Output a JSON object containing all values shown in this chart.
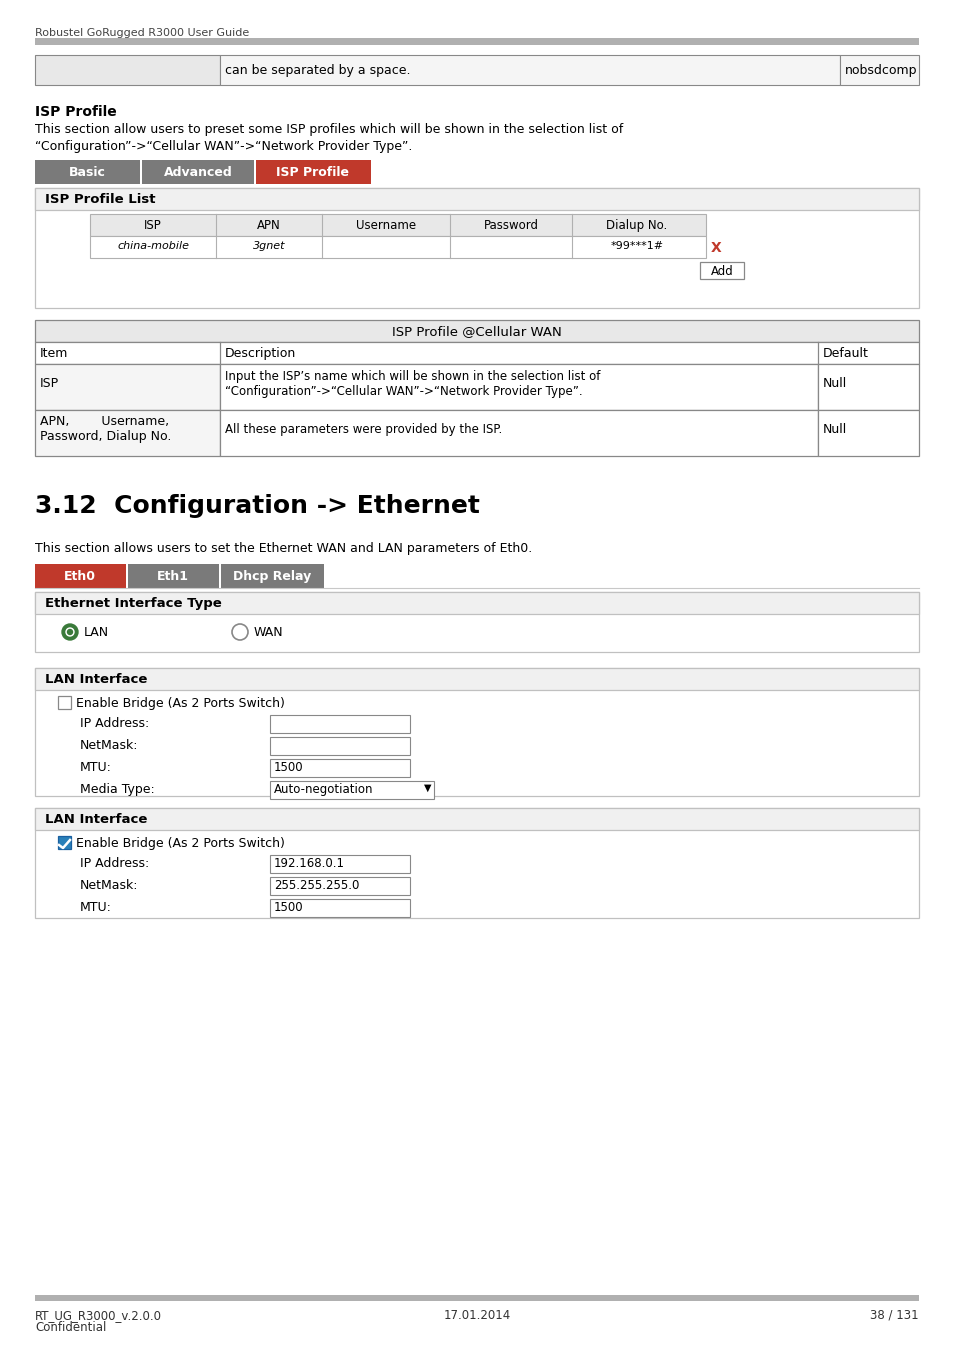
{
  "page_bg": "#ffffff",
  "header_text": "Robustel GoRugged R3000 User Guide",
  "top_table_col2": "can be separated by a space.",
  "top_table_col3": "nobsdcomp",
  "isp_profile_title": "ISP Profile",
  "isp_profile_desc1": "This section allow users to preset some ISP profiles which will be shown in the selection list of",
  "isp_profile_desc2": "“Configuration”->“Cellular WAN”->“Network Provider Type”.",
  "tabs1": [
    {
      "label": "Basic",
      "color": "#7a7a7a"
    },
    {
      "label": "Advanced",
      "color": "#7a7a7a"
    },
    {
      "label": "ISP Profile",
      "color": "#c0392b"
    }
  ],
  "isp_list_title": "ISP Profile List",
  "isp_headers": [
    "ISP",
    "APN",
    "Username",
    "Password",
    "Dialup No."
  ],
  "isp_row": [
    "china-mobile",
    "3gnet",
    "",
    "",
    "*99***1#"
  ],
  "add_btn": "Add",
  "cellular_title": "ISP Profile @Cellular WAN",
  "cellular_headers": [
    "Item",
    "Description",
    "Default"
  ],
  "cellular_rows": [
    {
      "item": "ISP",
      "desc_line1": "Input the ISP’s name which will be shown in the selection list of",
      "desc_line2": "“Configuration”->“Cellular WAN”->“Network Provider Type”.",
      "default": "Null"
    },
    {
      "item_line1": "APN,        Username,",
      "item_line2": "Password, Dialup No.",
      "desc_line1": "All these parameters were provided by the ISP.",
      "desc_line2": "",
      "default": "Null"
    }
  ],
  "section_title": "3.12  Configuration -> Ethernet",
  "eth_desc": "This section allows users to set the Ethernet WAN and LAN parameters of Eth0.",
  "tabs2": [
    {
      "label": "Eth0",
      "color": "#c0392b"
    },
    {
      "label": "Eth1",
      "color": "#7a7a7a"
    },
    {
      "label": "Dhcp Relay",
      "color": "#7a7a7a"
    }
  ],
  "eth_type_title": "Ethernet Interface Type",
  "lan_box1_title": "LAN Interface",
  "lan_box2_title": "LAN Interface",
  "footer_left1": "RT_UG_R3000_v.2.0.0",
  "footer_left2": "Confidential",
  "footer_center": "17.01.2014",
  "footer_right": "38 / 131"
}
